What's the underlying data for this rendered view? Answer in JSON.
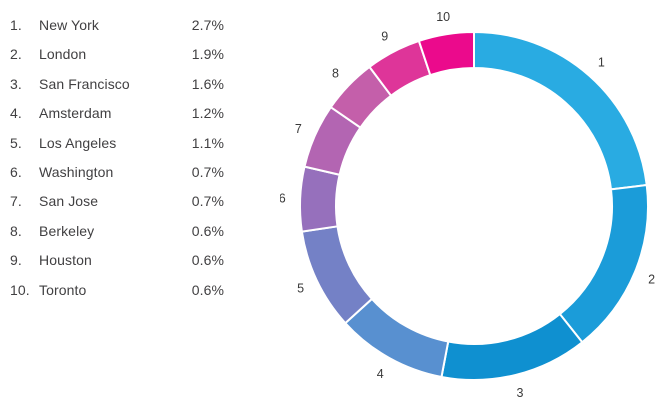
{
  "page": {
    "background": "#FFFFFF",
    "text_color": "#414042"
  },
  "legend": {
    "items": [
      {
        "rank": "1.",
        "city": "New York",
        "value": "2.7%"
      },
      {
        "rank": "2.",
        "city": "London",
        "value": "1.9%"
      },
      {
        "rank": "3.",
        "city": "San Francisco",
        "value": "1.6%"
      },
      {
        "rank": "4.",
        "city": "Amsterdam",
        "value": "1.2%"
      },
      {
        "rank": "5.",
        "city": "Los Angeles",
        "value": "1.1%"
      },
      {
        "rank": "6.",
        "city": "Washington",
        "value": "0.7%"
      },
      {
        "rank": "7.",
        "city": "San Jose",
        "value": "0.7%"
      },
      {
        "rank": "8.",
        "city": "Berkeley",
        "value": "0.6%"
      },
      {
        "rank": "9.",
        "city": "Houston",
        "value": "0.6%"
      },
      {
        "rank": "10.",
        "city": "Toronto",
        "value": "0.6%"
      }
    ]
  },
  "chart_data": {
    "type": "pie",
    "subtype": "donut",
    "categories": [
      "New York",
      "London",
      "San Francisco",
      "Amsterdam",
      "Los Angeles",
      "Washington",
      "San Jose",
      "Berkeley",
      "Houston",
      "Toronto"
    ],
    "values": [
      2.7,
      1.9,
      1.6,
      1.2,
      1.1,
      0.7,
      0.7,
      0.6,
      0.6,
      0.6
    ],
    "unit": "%",
    "segment_labels": [
      "1",
      "2",
      "3",
      "4",
      "5",
      "6",
      "7",
      "8",
      "9",
      "10"
    ],
    "colors": [
      "#29ABE2",
      "#1B9CD9",
      "#0F90D0",
      "#5890D0",
      "#7481C6",
      "#9670BC",
      "#B365B2",
      "#C45FAA",
      "#DE3599",
      "#EB0A8C"
    ],
    "separator_color": "#FFFFFF",
    "label_color": "#3A3A3A",
    "start_angle_deg": 0,
    "direction": "clockwise",
    "legend_position": "left"
  }
}
